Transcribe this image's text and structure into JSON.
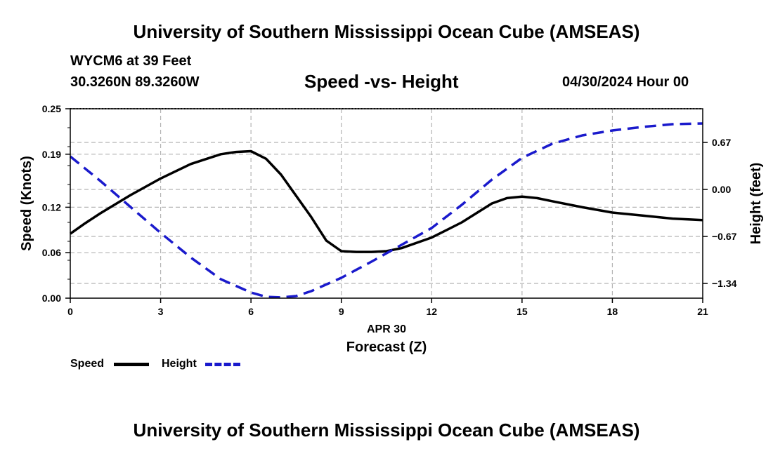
{
  "header": {
    "title": "University of Southern Mississippi Ocean Cube (AMSEAS)",
    "station": "WYCM6 at 39 Feet",
    "coordinates": "30.3260N  89.3260W",
    "chart_title": "Speed -vs- Height",
    "datetime": "04/30/2024 Hour 00"
  },
  "footer": {
    "title": "University of Southern Mississippi Ocean Cube (AMSEAS)"
  },
  "colors": {
    "speed": "#000000",
    "height": "#1a1acc",
    "grid": "#b4b4b4"
  },
  "chart_data": {
    "type": "line",
    "title": "Speed -vs- Height",
    "xlabel": "Forecast (Z)",
    "xsublabel": "APR 30",
    "ylabel": "Speed (Knots)",
    "y2label": "Height (feet)",
    "xlim": [
      0,
      21
    ],
    "ylim": [
      0,
      0.25
    ],
    "y2lim": [
      -1.55,
      1.15
    ],
    "xticks": [
      0,
      3,
      6,
      9,
      12,
      15,
      18,
      21
    ],
    "xtick_labels": [
      "0",
      "3",
      "6",
      "9",
      "12",
      "15",
      "18",
      "21"
    ],
    "yticks": [
      0,
      0.06,
      0.12,
      0.19,
      0.25
    ],
    "ytick_labels": [
      "0.00",
      "0.06",
      "0.12",
      "0.19",
      "0.25"
    ],
    "y2ticks": [
      -1.34,
      -0.67,
      0.0,
      0.67
    ],
    "y2tick_labels": [
      "−1.34",
      "−0.67",
      "0.00",
      "0.67"
    ],
    "grid": true,
    "legend_position": "bottom-left",
    "series": [
      {
        "name": "Speed",
        "axis": "left",
        "style": "solid",
        "x": [
          0,
          0.5,
          1,
          2,
          3,
          4,
          5,
          5.5,
          6,
          6.5,
          7,
          8,
          8.5,
          9,
          9.5,
          10,
          10.5,
          11,
          12,
          13,
          14,
          14.5,
          15,
          15.5,
          16,
          17,
          18,
          19,
          20,
          21
        ],
        "values": [
          0.085,
          0.099,
          0.112,
          0.136,
          0.158,
          0.177,
          0.19,
          0.193,
          0.194,
          0.184,
          0.163,
          0.107,
          0.076,
          0.062,
          0.061,
          0.061,
          0.062,
          0.066,
          0.08,
          0.1,
          0.125,
          0.132,
          0.134,
          0.132,
          0.128,
          0.12,
          0.113,
          0.109,
          0.105,
          0.103
        ]
      },
      {
        "name": "Height",
        "axis": "right",
        "style": "dashed",
        "x": [
          0,
          1,
          2,
          3,
          4,
          5,
          6,
          6.5,
          7,
          7.5,
          8,
          9,
          10,
          11,
          12,
          13,
          14,
          15,
          16,
          17,
          18,
          19,
          20,
          21
        ],
        "values": [
          0.47,
          0.12,
          -0.25,
          -0.62,
          -0.97,
          -1.28,
          -1.47,
          -1.53,
          -1.54,
          -1.52,
          -1.45,
          -1.26,
          -1.03,
          -0.79,
          -0.55,
          -0.22,
          0.14,
          0.45,
          0.65,
          0.77,
          0.84,
          0.89,
          0.93,
          0.94
        ]
      }
    ]
  }
}
